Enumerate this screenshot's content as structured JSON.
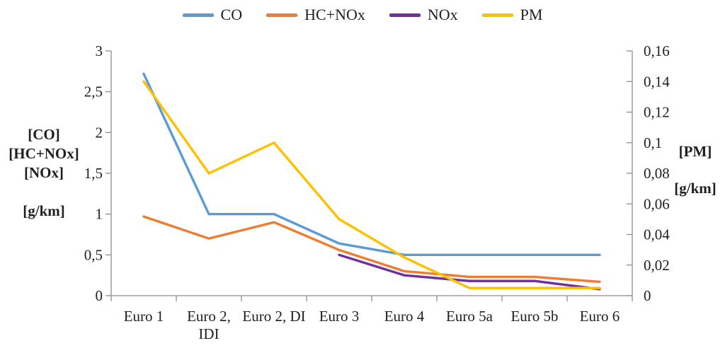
{
  "chart_data": {
    "type": "line",
    "title": "",
    "categories": [
      "Euro 1",
      "Euro 2,\nIDI",
      "Euro 2, DI",
      "Euro 3",
      "Euro 4",
      "Euro 5a",
      "Euro 5b",
      "Euro 6"
    ],
    "series": [
      {
        "name": "CO",
        "axis": "left",
        "color": "#5B9BD5",
        "values": [
          2.72,
          1.0,
          1.0,
          0.64,
          0.5,
          0.5,
          0.5,
          0.5
        ]
      },
      {
        "name": "HC+NOx",
        "axis": "left",
        "color": "#ED7D31",
        "values": [
          0.97,
          0.7,
          0.9,
          0.56,
          0.3,
          0.23,
          0.23,
          0.17
        ]
      },
      {
        "name": "NOx",
        "axis": "left",
        "color": "#7030A0",
        "values": [
          null,
          null,
          null,
          0.5,
          0.25,
          0.18,
          0.18,
          0.08
        ]
      },
      {
        "name": "PM",
        "axis": "right",
        "color": "#FFC000",
        "values": [
          0.14,
          0.08,
          0.1,
          0.05,
          0.025,
          0.005,
          0.005,
          0.005
        ]
      }
    ],
    "left_axis": {
      "title_lines": [
        "[CO]",
        "[HC+NOx]",
        "[NOx]",
        "",
        "[g/km]"
      ],
      "min": 0,
      "max": 3,
      "tick_values": [
        0,
        0.5,
        1,
        1.5,
        2,
        2.5,
        3
      ],
      "tick_labels": [
        "0",
        "0,5",
        "1",
        "1,5",
        "2",
        "2,5",
        "3"
      ]
    },
    "right_axis": {
      "title_lines": [
        "[PM]",
        "",
        "[g/km]"
      ],
      "min": 0,
      "max": 0.16,
      "tick_values": [
        0,
        0.02,
        0.04,
        0.06,
        0.08,
        0.1,
        0.12,
        0.14,
        0.16
      ],
      "tick_labels": [
        "0",
        "0,02",
        "0,04",
        "0,06",
        "0,08",
        "0,1",
        "0,12",
        "0,14",
        "0,16"
      ]
    },
    "legend_position": "top",
    "grid": false,
    "colors": {
      "axis": "#8e8e8e",
      "text": "#1f1f1f"
    }
  }
}
